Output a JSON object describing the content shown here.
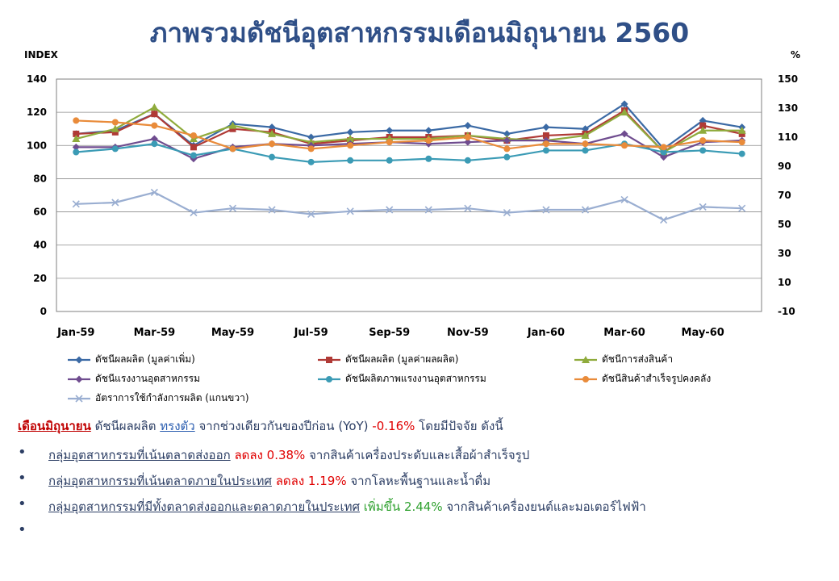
{
  "title": "ภาพรวมดัชนีอุตสาหกรรมเดือนมิถุนายน 2560",
  "chart_data": {
    "type": "line",
    "categories": [
      "Jan-59",
      "Feb-59",
      "Mar-59",
      "Apr-59",
      "May-59",
      "Jun-59",
      "Jul-59",
      "Aug-59",
      "Sep-59",
      "Oct-59",
      "Nov-59",
      "Dec-59",
      "Jan-60",
      "Feb-60",
      "Mar-60",
      "Apr-60",
      "May-60",
      "Jun-60"
    ],
    "x_tick_labels": [
      "Jan-59",
      "",
      "Mar-59",
      "",
      "May-59",
      "",
      "Jul-59",
      "",
      "Sep-59",
      "",
      "Nov-59",
      "",
      "Jan-60",
      "",
      "Mar-60",
      "",
      "May-60",
      ""
    ],
    "y_left_label": "INDEX",
    "y_right_label": "%",
    "y_left_lim": [
      0,
      140
    ],
    "y_left_ticks": [
      0,
      20,
      40,
      60,
      80,
      100,
      120,
      140
    ],
    "y_right_lim": [
      -10,
      150
    ],
    "y_right_ticks": [
      -10,
      10,
      30,
      50,
      70,
      90,
      110,
      130,
      150
    ],
    "grid": true,
    "legend_position": "bottom",
    "series": [
      {
        "name": "ดัชนีผลผลิต (มูลค่าเพิ่ม)",
        "color": "#3b6aa5",
        "marker": "diamond",
        "axis": "left",
        "values": [
          107,
          109,
          119,
          100,
          113,
          111,
          105,
          108,
          109,
          109,
          112,
          107,
          111,
          110,
          125,
          98,
          115,
          111
        ]
      },
      {
        "name": "ดัชนีผลผลิต (มูลค่าผลผลิต)",
        "color": "#b03a36",
        "marker": "square",
        "axis": "left",
        "values": [
          107,
          108,
          119,
          99,
          110,
          108,
          101,
          103,
          105,
          105,
          106,
          103,
          106,
          107,
          121,
          96,
          112,
          107
        ]
      },
      {
        "name": "ดัชนีการส่งสินค้า",
        "color": "#8fab3c",
        "marker": "triangle",
        "axis": "left",
        "values": [
          104,
          110,
          123,
          104,
          112,
          107,
          102,
          104,
          104,
          104,
          106,
          104,
          103,
          106,
          120,
          96,
          109,
          109
        ]
      },
      {
        "name": "ดัชนีแรงงานอุตสาหกรรม",
        "color": "#6f4c8f",
        "marker": "diamond",
        "axis": "left",
        "values": [
          99,
          99,
          104,
          92,
          99,
          101,
          100,
          101,
          102,
          101,
          102,
          103,
          103,
          101,
          107,
          93,
          102,
          103
        ]
      },
      {
        "name": "ดัชนีผลิตภาพแรงงานอุตสาหกรรม",
        "color": "#3b9bb5",
        "marker": "circle",
        "axis": "left",
        "values": [
          96,
          98,
          101,
          94,
          98,
          93,
          90,
          91,
          91,
          92,
          91,
          93,
          97,
          97,
          101,
          96,
          97,
          95
        ]
      },
      {
        "name": "ดัชนีสินค้าสำเร็จรูปคงคลัง",
        "color": "#e98b3a",
        "marker": "circle",
        "axis": "left",
        "values": [
          115,
          114,
          112,
          106,
          98,
          101,
          98,
          100,
          102,
          103,
          105,
          98,
          101,
          101,
          100,
          99,
          103,
          102
        ]
      },
      {
        "name": "อัตราการใช้กำลังการผลิต (แกนขวา)",
        "color": "#9aaed1",
        "marker": "x",
        "axis": "right",
        "values": [
          64,
          65,
          72,
          58,
          61,
          60,
          57,
          59,
          60,
          60,
          61,
          58,
          60,
          60,
          67,
          53,
          62,
          61
        ]
      }
    ]
  },
  "summary": {
    "lead_month": "เดือนมิถุนายน",
    "lead_text1": " ดัชนีผลผลิต ",
    "lead_trend": "ทรงตัว",
    "lead_text2": " จากช่วงเดียวกันของปีก่อน (YoY) ",
    "lead_value": "-0.16%",
    "lead_text3": " โดยมีปัจจัย ดังนี้",
    "bullets": [
      {
        "bullet": "•",
        "group": "กลุ่มอุตสาหกรรมที่เน้นตลาดส่งออก",
        "change": " ลดลง 0.38%",
        "change_color": "red",
        "detail": " จากสินค้าเครื่องประดับและเสื้อผ้าสำเร็จรูป"
      },
      {
        "bullet": "•",
        "group": "กลุ่มอุตสาหกรรมที่เน้นตลาดภายในประเทศ",
        "change": " ลดลง 1.19%",
        "change_color": "red",
        "detail": " จากโลหะพื้นฐานและน้ำดื่ม"
      },
      {
        "bullet": "•",
        "group": "กลุ่มอุตสาหกรรมที่มีทั้งตลาดส่งออกและตลาดภายในประเทศ",
        "change": " เพิ่มขึ้น 2.44%",
        "change_color": "green",
        "detail": " จากสินค้าเครื่องยนต์และมอเตอร์ไฟฟ้า"
      },
      {
        "bullet": "•",
        "group": "",
        "change": "",
        "change_color": "",
        "detail": ""
      }
    ]
  }
}
